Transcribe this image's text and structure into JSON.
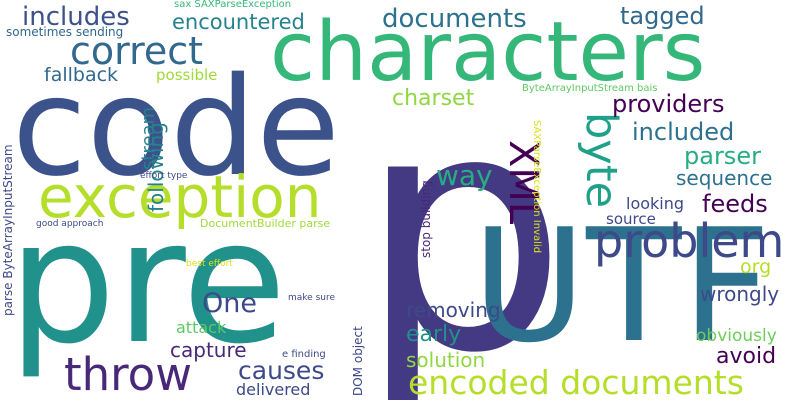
{
  "cloud": {
    "words": [
      {
        "text": "p",
        "color": "#443983"
      },
      {
        "text": "pre",
        "color": "#21918c"
      },
      {
        "text": "code",
        "color": "#3b528b"
      },
      {
        "text": "characters",
        "color": "#35b779"
      },
      {
        "text": "UTF",
        "color": "#2c728e"
      },
      {
        "text": "exception",
        "color": "#b5de2b"
      },
      {
        "text": "throw",
        "color": "#482878"
      },
      {
        "text": "problem",
        "color": "#3e4989"
      },
      {
        "text": "correct",
        "color": "#31688e"
      },
      {
        "text": "encoded documents",
        "color": "#b5de2b"
      },
      {
        "text": "XML",
        "color": "#440154"
      },
      {
        "text": "byte",
        "color": "#1fa088"
      },
      {
        "text": "includes",
        "color": "#3b528b"
      },
      {
        "text": "documents",
        "color": "#2c728e"
      },
      {
        "text": "encountered",
        "color": "#26828e"
      },
      {
        "text": "tagged",
        "color": "#31688e"
      },
      {
        "text": "providers",
        "color": "#440154"
      },
      {
        "text": "included",
        "color": "#2c728e"
      },
      {
        "text": "parser",
        "color": "#27ad81"
      },
      {
        "text": "charset",
        "color": "#90d743"
      },
      {
        "text": "fallback",
        "color": "#31688e"
      },
      {
        "text": "possible",
        "color": "#a0da39"
      },
      {
        "text": "sequence",
        "color": "#2c728e"
      },
      {
        "text": "way",
        "color": "#27ad81"
      },
      {
        "text": "feeds",
        "color": "#440154"
      },
      {
        "text": "looking",
        "color": "#3e4989"
      },
      {
        "text": "source",
        "color": "#3e4989"
      },
      {
        "text": "org",
        "color": "#b5de2b"
      },
      {
        "text": "wrongly",
        "color": "#3e4989"
      },
      {
        "text": "One",
        "color": "#3e4989"
      },
      {
        "text": "removing",
        "color": "#3e4989"
      },
      {
        "text": "early",
        "color": "#21918c"
      },
      {
        "text": "obviously",
        "color": "#6ccd5a"
      },
      {
        "text": "avoid",
        "color": "#440154"
      },
      {
        "text": "solution",
        "color": "#90d743"
      },
      {
        "text": "causes",
        "color": "#3e4989"
      },
      {
        "text": "capture",
        "color": "#482878"
      },
      {
        "text": "attack",
        "color": "#5ec962"
      },
      {
        "text": "delivered",
        "color": "#3e4989"
      },
      {
        "text": "following",
        "color": "#26828e"
      },
      {
        "text": "stream",
        "color": "#26828e"
      },
      {
        "text": "sometimes sending",
        "color": "#31688e"
      },
      {
        "text": "sax SAXParseException",
        "color": "#35b779"
      },
      {
        "text": "ByteArrayInputStream bais",
        "color": "#5ec962"
      },
      {
        "text": "SAXParseException Invalid",
        "color": "#d8e219"
      },
      {
        "text": "stop building",
        "color": "#482878"
      },
      {
        "text": "DOM object",
        "color": "#3e4989"
      },
      {
        "text": "parse ByteArrayInputStream",
        "color": "#3e4989"
      },
      {
        "text": "effort type",
        "color": "#3e4989"
      },
      {
        "text": "good approach",
        "color": "#3e4989"
      },
      {
        "text": "DocumentBuilder parse",
        "color": "#a0da39"
      },
      {
        "text": "best effort",
        "color": "#d8e219"
      },
      {
        "text": "make sure",
        "color": "#3e4989"
      },
      {
        "text": "e finding",
        "color": "#3e4989"
      }
    ]
  }
}
